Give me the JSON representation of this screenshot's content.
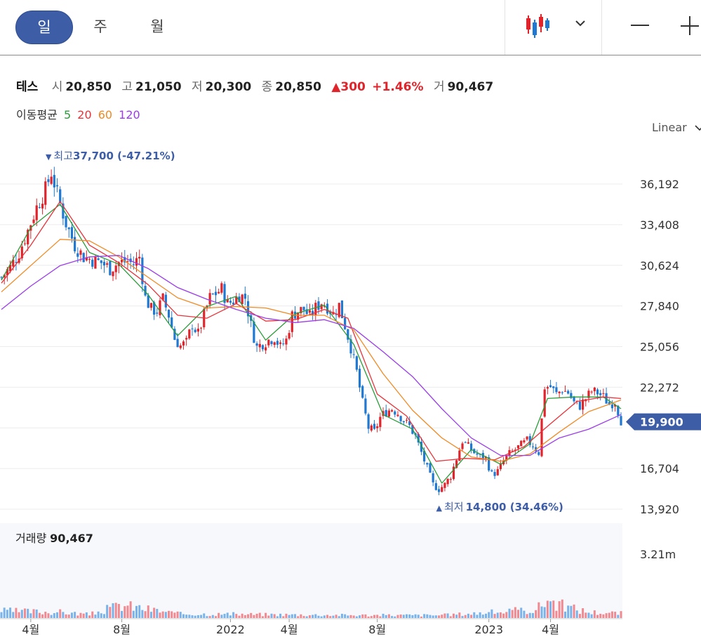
{
  "toolbar": {
    "periods": [
      "일",
      "주",
      "월"
    ],
    "active_period": "일",
    "chart_type_icon": "candlestick-icon",
    "zoom_out_icon": "minus-icon",
    "zoom_in_icon": "plus-icon"
  },
  "quote": {
    "name": "테스",
    "open_label": "시",
    "open": "20,850",
    "high_label": "고",
    "high": "21,050",
    "low_label": "저",
    "low": "20,300",
    "close_label": "종",
    "close": "20,850",
    "change": "300",
    "change_pct": "+1.46%",
    "volume_label": "거",
    "volume": "90,467"
  },
  "ma_legend": {
    "label": "이동평균",
    "items": [
      {
        "label": "5",
        "color": "#2a9d3a"
      },
      {
        "label": "20",
        "color": "#e8333a"
      },
      {
        "label": "60",
        "color": "#f08a24"
      },
      {
        "label": "120",
        "color": "#9b3de8"
      }
    ]
  },
  "scale_mode": "Linear",
  "colors": {
    "up": "#e0242c",
    "down": "#1f78d1",
    "accent": "#3d5da6",
    "price_tag": "#3d5da6"
  },
  "chart_data": {
    "type": "candlestick",
    "y_ticks": [
      "36,192",
      "33,408",
      "30,624",
      "27,840",
      "25,056",
      "22,272",
      "16,704",
      "13,920"
    ],
    "y_tick_values": [
      36192,
      33408,
      30624,
      27840,
      25056,
      22272,
      19488,
      16704,
      13920
    ],
    "x_ticks": [
      "4월",
      "8월",
      "2022",
      "4월",
      "8월",
      "2023",
      "4월"
    ],
    "current_price": "19,900",
    "high_marker": {
      "text_prefix": "최고",
      "value": "37,700",
      "pct": "(-47.21%)"
    },
    "low_marker": {
      "text_prefix": "최저",
      "value": "14,800",
      "pct": "(34.46%)"
    },
    "volume_label": "거래량",
    "volume_value": "90,467",
    "volume_axis_tick": "3.21m",
    "price_path": [
      [
        0,
        29800
      ],
      [
        3,
        30500
      ],
      [
        6,
        31500
      ],
      [
        9,
        33000
      ],
      [
        12,
        34600
      ],
      [
        15,
        35800
      ],
      [
        17,
        37000
      ],
      [
        19,
        35500
      ],
      [
        22,
        33500
      ],
      [
        25,
        32000
      ],
      [
        28,
        31200
      ],
      [
        31,
        31000
      ],
      [
        34,
        30800
      ],
      [
        37,
        30400
      ],
      [
        40,
        30800
      ],
      [
        43,
        30900
      ],
      [
        45,
        30700
      ],
      [
        47,
        31200
      ],
      [
        49,
        28400
      ],
      [
        51,
        27600
      ],
      [
        53,
        27500
      ],
      [
        55,
        28300
      ],
      [
        57,
        27200
      ],
      [
        59,
        25600
      ],
      [
        61,
        25100
      ],
      [
        63,
        25300
      ],
      [
        65,
        26600
      ],
      [
        67,
        25900
      ],
      [
        69,
        27200
      ],
      [
        71,
        28400
      ],
      [
        73,
        28700
      ],
      [
        75,
        29000
      ],
      [
        77,
        28000
      ],
      [
        79,
        28200
      ],
      [
        81,
        28600
      ],
      [
        83,
        28400
      ],
      [
        85,
        26500
      ],
      [
        87,
        25000
      ],
      [
        89,
        25300
      ],
      [
        91,
        25500
      ],
      [
        93,
        25700
      ],
      [
        95,
        25000
      ],
      [
        97,
        25500
      ],
      [
        99,
        27200
      ],
      [
        101,
        27500
      ],
      [
        103,
        27600
      ],
      [
        105,
        27100
      ],
      [
        107,
        27700
      ],
      [
        109,
        28100
      ],
      [
        111,
        27800
      ],
      [
        113,
        27300
      ],
      [
        115,
        27900
      ],
      [
        117,
        26500
      ],
      [
        119,
        25000
      ],
      [
        121,
        23300
      ],
      [
        123,
        21200
      ],
      [
        125,
        19500
      ],
      [
        127,
        19200
      ],
      [
        129,
        20200
      ],
      [
        131,
        20600
      ],
      [
        133,
        20800
      ],
      [
        135,
        20500
      ],
      [
        137,
        20000
      ],
      [
        139,
        19600
      ],
      [
        141,
        18900
      ],
      [
        143,
        17800
      ],
      [
        145,
        16700
      ],
      [
        147,
        15600
      ],
      [
        149,
        15300
      ],
      [
        151,
        15600
      ],
      [
        153,
        16200
      ],
      [
        155,
        17400
      ],
      [
        157,
        18600
      ],
      [
        159,
        18200
      ],
      [
        161,
        17800
      ],
      [
        163,
        17500
      ],
      [
        165,
        17400
      ],
      [
        167,
        16300
      ],
      [
        169,
        16500
      ],
      [
        171,
        17200
      ],
      [
        173,
        17700
      ],
      [
        175,
        18000
      ],
      [
        177,
        18300
      ],
      [
        179,
        18600
      ],
      [
        181,
        18300
      ],
      [
        183,
        17800
      ],
      [
        185,
        22300
      ],
      [
        187,
        22300
      ],
      [
        189,
        21800
      ],
      [
        191,
        22100
      ],
      [
        193,
        21900
      ],
      [
        195,
        21200
      ],
      [
        197,
        21000
      ],
      [
        199,
        21500
      ],
      [
        201,
        22000
      ],
      [
        203,
        21900
      ],
      [
        205,
        21600
      ],
      [
        207,
        21100
      ],
      [
        209,
        21300
      ],
      [
        211,
        20000
      ]
    ],
    "ma5": [
      [
        0,
        29600
      ],
      [
        10,
        33200
      ],
      [
        20,
        34800
      ],
      [
        30,
        31500
      ],
      [
        40,
        30700
      ],
      [
        50,
        28600
      ],
      [
        60,
        25800
      ],
      [
        70,
        27800
      ],
      [
        80,
        28500
      ],
      [
        90,
        25500
      ],
      [
        100,
        27300
      ],
      [
        110,
        27900
      ],
      [
        120,
        25200
      ],
      [
        130,
        20400
      ],
      [
        140,
        19400
      ],
      [
        150,
        15700
      ],
      [
        160,
        18000
      ],
      [
        170,
        17000
      ],
      [
        180,
        18400
      ],
      [
        186,
        21500
      ],
      [
        195,
        21600
      ],
      [
        205,
        21600
      ],
      [
        211,
        20800
      ]
    ],
    "ma20": [
      [
        0,
        29400
      ],
      [
        10,
        32000
      ],
      [
        20,
        35000
      ],
      [
        30,
        32000
      ],
      [
        40,
        30800
      ],
      [
        50,
        29300
      ],
      [
        60,
        27200
      ],
      [
        70,
        27000
      ],
      [
        80,
        28000
      ],
      [
        90,
        26800
      ],
      [
        100,
        26900
      ],
      [
        110,
        27600
      ],
      [
        118,
        27000
      ],
      [
        128,
        21800
      ],
      [
        138,
        20300
      ],
      [
        148,
        17200
      ],
      [
        158,
        17400
      ],
      [
        168,
        17300
      ],
      [
        178,
        18200
      ],
      [
        186,
        19600
      ],
      [
        196,
        21300
      ],
      [
        205,
        21600
      ],
      [
        211,
        21500
      ]
    ],
    "ma60": [
      [
        0,
        28800
      ],
      [
        10,
        30600
      ],
      [
        20,
        32400
      ],
      [
        30,
        32300
      ],
      [
        40,
        31200
      ],
      [
        50,
        29800
      ],
      [
        60,
        28400
      ],
      [
        70,
        27700
      ],
      [
        80,
        27800
      ],
      [
        90,
        27700
      ],
      [
        100,
        27200
      ],
      [
        110,
        27200
      ],
      [
        120,
        26200
      ],
      [
        130,
        23200
      ],
      [
        140,
        20700
      ],
      [
        150,
        18800
      ],
      [
        160,
        17500
      ],
      [
        170,
        17200
      ],
      [
        180,
        17700
      ],
      [
        190,
        19200
      ],
      [
        200,
        20600
      ],
      [
        211,
        21400
      ]
    ],
    "ma120": [
      [
        0,
        27600
      ],
      [
        10,
        29200
      ],
      [
        20,
        30600
      ],
      [
        30,
        31200
      ],
      [
        40,
        31300
      ],
      [
        50,
        30400
      ],
      [
        60,
        29100
      ],
      [
        70,
        28300
      ],
      [
        80,
        27600
      ],
      [
        90,
        27000
      ],
      [
        100,
        26700
      ],
      [
        110,
        26900
      ],
      [
        120,
        26300
      ],
      [
        130,
        24700
      ],
      [
        140,
        23000
      ],
      [
        150,
        20800
      ],
      [
        160,
        18800
      ],
      [
        170,
        17600
      ],
      [
        180,
        17600
      ],
      [
        190,
        18800
      ],
      [
        200,
        19400
      ],
      [
        211,
        20400
      ]
    ],
    "volume_profile": [
      [
        0,
        0.3
      ],
      [
        20,
        0.25
      ],
      [
        30,
        0.15
      ],
      [
        41,
        0.55
      ],
      [
        60,
        0.18
      ],
      [
        90,
        0.15
      ],
      [
        120,
        0.12
      ],
      [
        150,
        0.12
      ],
      [
        182,
        0.35
      ],
      [
        186,
        0.8
      ],
      [
        190,
        0.55
      ],
      [
        200,
        0.25
      ],
      [
        211,
        0.2
      ]
    ]
  }
}
